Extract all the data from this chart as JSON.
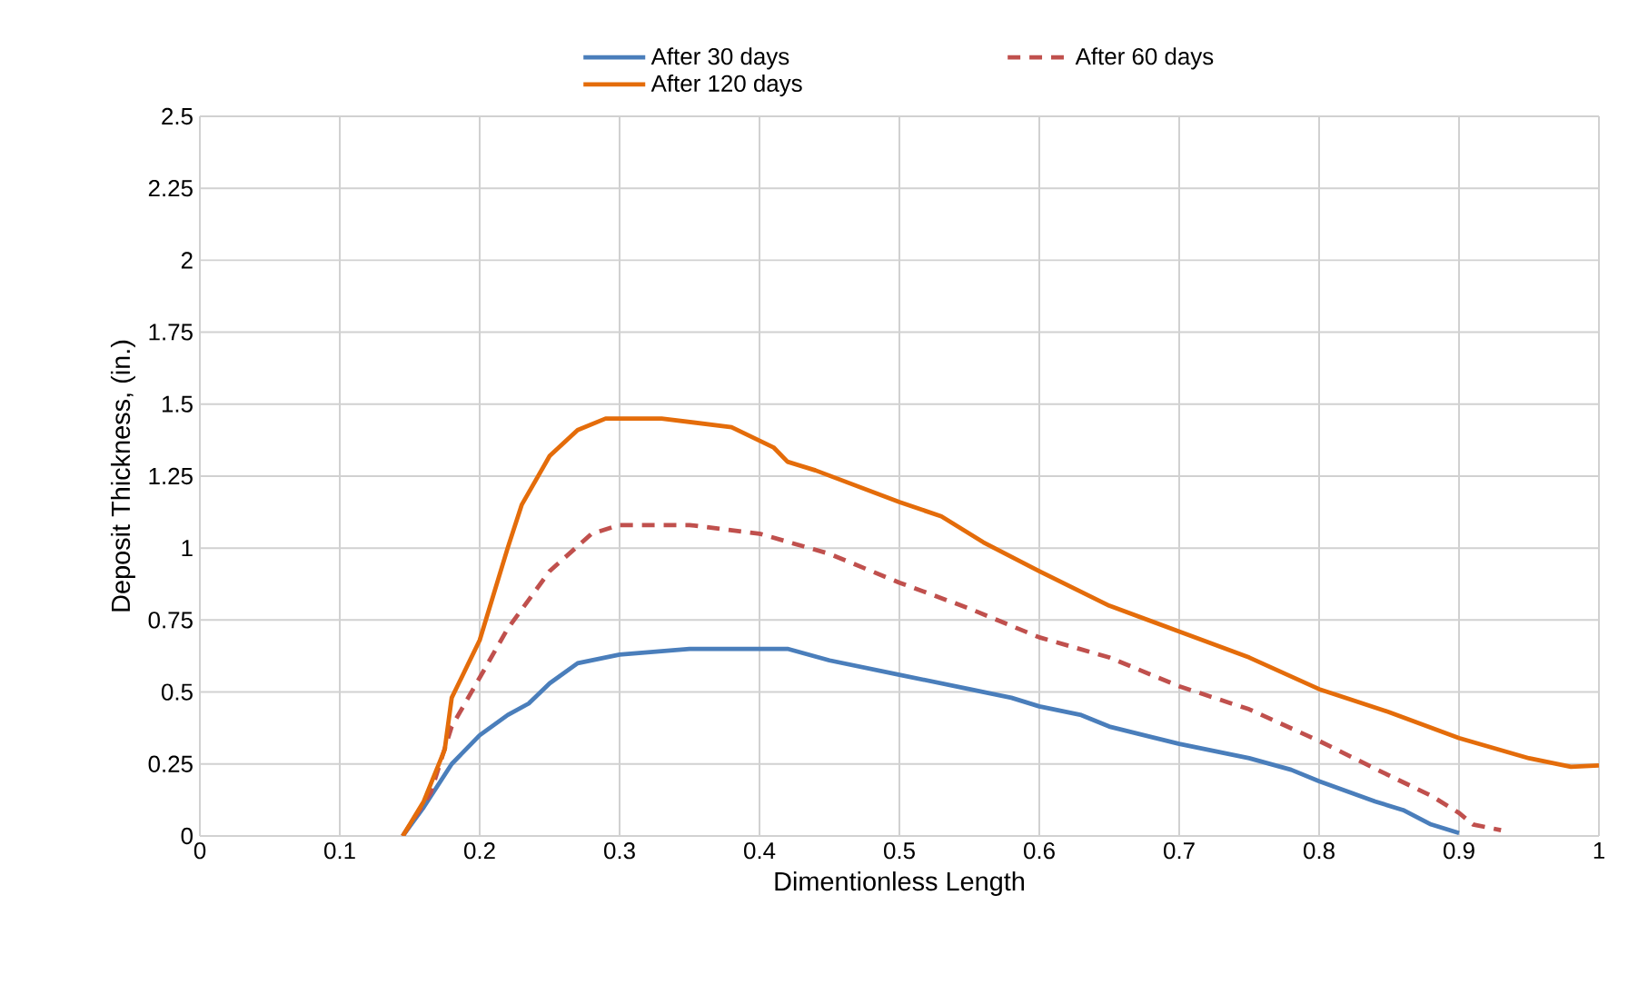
{
  "chart_data": {
    "type": "line",
    "xlabel": "Dimentionless Length",
    "ylabel": "Deposit Thickness, (in.)",
    "xlim": [
      0,
      1
    ],
    "xticks": [
      0,
      0.1,
      0.2,
      0.3,
      0.4,
      0.5,
      0.6,
      0.7,
      0.8,
      0.9,
      1
    ],
    "ylim": [
      0,
      2.5
    ],
    "yticks": [
      0,
      0.25,
      0.5,
      0.75,
      1,
      1.25,
      1.5,
      1.75,
      2,
      2.25,
      2.5
    ],
    "grid": true,
    "legend": "top",
    "marker": "none",
    "series": [
      {
        "name": "After 30 days",
        "color": "#4a7ebb",
        "line_style": "solid",
        "x": [
          0.145,
          0.16,
          0.18,
          0.2,
          0.22,
          0.235,
          0.25,
          0.27,
          0.3,
          0.35,
          0.42,
          0.45,
          0.5,
          0.55,
          0.58,
          0.6,
          0.63,
          0.65,
          0.7,
          0.75,
          0.78,
          0.8,
          0.84,
          0.86,
          0.88,
          0.9
        ],
        "values": [
          0,
          0.1,
          0.25,
          0.35,
          0.42,
          0.46,
          0.53,
          0.6,
          0.63,
          0.65,
          0.65,
          0.61,
          0.56,
          0.51,
          0.48,
          0.45,
          0.42,
          0.38,
          0.32,
          0.27,
          0.23,
          0.19,
          0.12,
          0.09,
          0.04,
          0.01
        ]
      },
      {
        "name": "After 60 days",
        "color": "#c0504d",
        "line_style": "dashed",
        "x": [
          0.145,
          0.165,
          0.18,
          0.2,
          0.22,
          0.25,
          0.28,
          0.3,
          0.35,
          0.4,
          0.45,
          0.5,
          0.55,
          0.6,
          0.65,
          0.7,
          0.75,
          0.8,
          0.85,
          0.88,
          0.9,
          0.91,
          0.93
        ],
        "values": [
          0,
          0.15,
          0.38,
          0.55,
          0.72,
          0.92,
          1.05,
          1.08,
          1.08,
          1.05,
          0.98,
          0.88,
          0.79,
          0.69,
          0.62,
          0.52,
          0.44,
          0.33,
          0.21,
          0.14,
          0.08,
          0.04,
          0.02
        ]
      },
      {
        "name": "After 120 days",
        "color": "#e46c0a",
        "line_style": "solid",
        "x": [
          0.145,
          0.16,
          0.175,
          0.18,
          0.2,
          0.22,
          0.23,
          0.25,
          0.27,
          0.29,
          0.33,
          0.38,
          0.41,
          0.42,
          0.44,
          0.5,
          0.53,
          0.56,
          0.6,
          0.65,
          0.7,
          0.75,
          0.8,
          0.85,
          0.9,
          0.95,
          0.98,
          1.0
        ],
        "values": [
          0,
          0.12,
          0.3,
          0.48,
          0.68,
          1.0,
          1.15,
          1.32,
          1.41,
          1.45,
          1.45,
          1.42,
          1.35,
          1.3,
          1.27,
          1.16,
          1.11,
          1.02,
          0.92,
          0.8,
          0.71,
          0.62,
          0.51,
          0.43,
          0.34,
          0.27,
          0.24,
          0.245
        ]
      }
    ]
  }
}
